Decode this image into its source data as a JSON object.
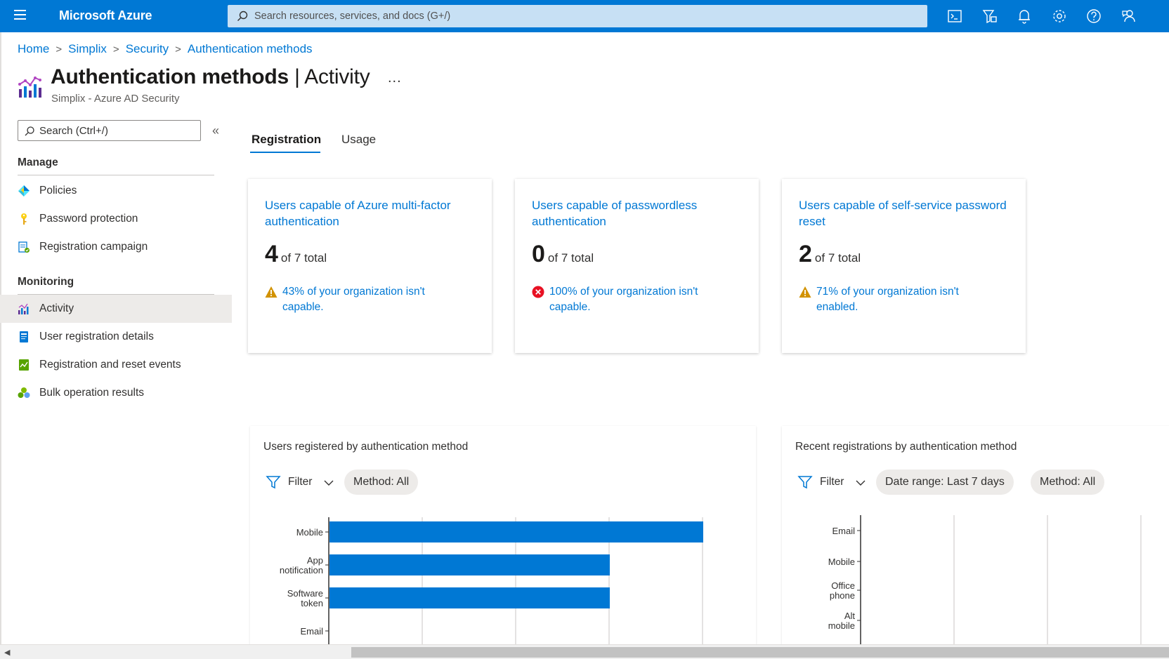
{
  "topbar": {
    "brand": "Microsoft Azure",
    "search_placeholder": "Search resources, services, and docs (G+/)",
    "icons": [
      "cloud-shell-icon",
      "directory-filter-icon",
      "notifications-icon",
      "settings-icon",
      "help-icon",
      "feedback-icon"
    ],
    "color": "#0078d4"
  },
  "breadcrumb": [
    "Home",
    "Simplix",
    "Security",
    "Authentication methods"
  ],
  "header": {
    "title": "Authentication methods",
    "title_suffix": "| Activity",
    "more": "...",
    "subtitle": "Simplix - Azure AD Security"
  },
  "sidebar": {
    "search_placeholder": "Search (Ctrl+/)",
    "collapse": "«",
    "sections": [
      {
        "heading": "Manage",
        "items": [
          {
            "label": "Policies",
            "icon": "policies-icon"
          },
          {
            "label": "Password protection",
            "icon": "key-icon"
          },
          {
            "label": "Registration campaign",
            "icon": "registration-campaign-icon"
          }
        ]
      },
      {
        "heading": "Monitoring",
        "items": [
          {
            "label": "Activity",
            "icon": "activity-chart-icon",
            "selected": true
          },
          {
            "label": "User registration details",
            "icon": "user-details-icon"
          },
          {
            "label": "Registration and reset events",
            "icon": "events-icon"
          },
          {
            "label": "Bulk operation results",
            "icon": "bulk-operations-icon"
          }
        ]
      }
    ]
  },
  "tabs": [
    {
      "label": "Registration",
      "active": true
    },
    {
      "label": "Usage",
      "active": false
    }
  ],
  "cards": [
    {
      "title": "Users capable of Azure multi-factor authentication",
      "count": "4",
      "of_total": "of 7 total",
      "status": "warning",
      "message": "43% of your organization isn't capable."
    },
    {
      "title": "Users capable of passwordless authentication",
      "count": "0",
      "of_total": "of 7 total",
      "status": "error",
      "message": "100% of your organization isn't capable."
    },
    {
      "title": "Users capable of self-service password reset",
      "count": "2",
      "of_total": "of 7 total",
      "status": "warning",
      "message": "71% of your organization isn't enabled."
    }
  ],
  "panels": [
    {
      "title": "Users registered by authentication method",
      "filter_label": "Filter",
      "pills": [
        "Method: All"
      ]
    },
    {
      "title": "Recent registrations by authentication method",
      "filter_label": "Filter",
      "pills": [
        "Date range: Last 7 days",
        "Method: All"
      ]
    }
  ],
  "chart_data": [
    {
      "type": "bar",
      "orientation": "horizontal",
      "categories": [
        [
          "Mobile"
        ],
        [
          "App",
          "notification"
        ],
        [
          "Software",
          "token"
        ],
        [
          "Email"
        ]
      ],
      "values": [
        4,
        3,
        3,
        0
      ],
      "xlim": [
        0,
        4
      ],
      "grid": true,
      "bar_color": "#0078d4"
    },
    {
      "type": "bar",
      "orientation": "horizontal",
      "categories": [
        [
          "Email"
        ],
        [
          "Mobile"
        ],
        [
          "Office",
          "phone"
        ],
        [
          "Alt",
          "mobile"
        ]
      ],
      "values": [
        0,
        0,
        0,
        0
      ],
      "grid": true,
      "bar_color": "#0078d4"
    }
  ],
  "colors": {
    "accent": "#0078d4",
    "warning": "#d29200",
    "error": "#e81123",
    "selected_nav": "#edebe9"
  }
}
